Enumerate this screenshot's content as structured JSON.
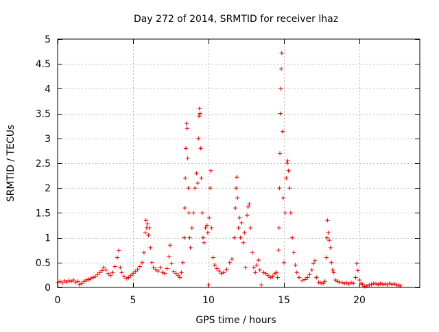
{
  "chart_data": {
    "type": "scatter",
    "title": "Day 272 of 2014, SRMTID for receiver lhaz",
    "xlabel": "GPS time / hours",
    "ylabel": "SRMTID / TECUs",
    "xlim": [
      0,
      24
    ],
    "ylim": [
      0,
      5
    ],
    "grid": true,
    "marker": "plus",
    "colors": {
      "series": "#ff0000",
      "grid": "#b7b7b7",
      "frame": "#000000"
    },
    "x_ticks": [
      {
        "value": 0,
        "label": "0"
      },
      {
        "value": 5,
        "label": "5"
      },
      {
        "value": 10,
        "label": "10"
      },
      {
        "value": 15,
        "label": "15"
      },
      {
        "value": 20,
        "label": "20"
      }
    ],
    "y_ticks": [
      {
        "value": 0,
        "label": "0"
      },
      {
        "value": 0.5,
        "label": "0.5"
      },
      {
        "value": 1,
        "label": "1"
      },
      {
        "value": 1.5,
        "label": "1.5"
      },
      {
        "value": 2,
        "label": "2"
      },
      {
        "value": 2.5,
        "label": "2.5"
      },
      {
        "value": 3,
        "label": "3"
      },
      {
        "value": 3.5,
        "label": "3.5"
      },
      {
        "value": 4,
        "label": "4"
      },
      {
        "value": 4.5,
        "label": "4.5"
      },
      {
        "value": 5,
        "label": "5"
      }
    ],
    "series": [
      {
        "name": "SRMTID",
        "points": [
          [
            0.0,
            0.1
          ],
          [
            0.15,
            0.12
          ],
          [
            0.3,
            0.09
          ],
          [
            0.45,
            0.13
          ],
          [
            0.6,
            0.11
          ],
          [
            0.75,
            0.14
          ],
          [
            0.9,
            0.12
          ],
          [
            1.05,
            0.15
          ],
          [
            1.2,
            0.1
          ],
          [
            1.35,
            0.12
          ],
          [
            1.45,
            0.06
          ],
          [
            1.6,
            0.08
          ],
          [
            1.75,
            0.12
          ],
          [
            1.9,
            0.15
          ],
          [
            2.05,
            0.16
          ],
          [
            2.2,
            0.18
          ],
          [
            2.35,
            0.2
          ],
          [
            2.5,
            0.22
          ],
          [
            2.65,
            0.26
          ],
          [
            2.8,
            0.3
          ],
          [
            2.95,
            0.34
          ],
          [
            3.05,
            0.4
          ],
          [
            3.2,
            0.35
          ],
          [
            3.35,
            0.28
          ],
          [
            3.5,
            0.24
          ],
          [
            3.65,
            0.3
          ],
          [
            3.8,
            0.42
          ],
          [
            3.95,
            0.6
          ],
          [
            4.05,
            0.74
          ],
          [
            4.15,
            0.4
          ],
          [
            4.25,
            0.3
          ],
          [
            4.4,
            0.22
          ],
          [
            4.55,
            0.18
          ],
          [
            4.7,
            0.2
          ],
          [
            4.85,
            0.24
          ],
          [
            5.0,
            0.28
          ],
          [
            5.15,
            0.32
          ],
          [
            5.3,
            0.36
          ],
          [
            5.45,
            0.42
          ],
          [
            5.6,
            0.5
          ],
          [
            5.72,
            0.7
          ],
          [
            5.8,
            1.1
          ],
          [
            5.85,
            1.35
          ],
          [
            5.9,
            1.2
          ],
          [
            5.95,
            1.28
          ],
          [
            6.02,
            1.05
          ],
          [
            6.08,
            1.2
          ],
          [
            6.15,
            0.8
          ],
          [
            6.25,
            0.5
          ],
          [
            6.35,
            0.4
          ],
          [
            6.5,
            0.36
          ],
          [
            6.65,
            0.33
          ],
          [
            6.8,
            0.4
          ],
          [
            6.95,
            0.3
          ],
          [
            7.1,
            0.28
          ],
          [
            7.25,
            0.38
          ],
          [
            7.38,
            0.62
          ],
          [
            7.45,
            0.85
          ],
          [
            7.55,
            0.48
          ],
          [
            7.7,
            0.32
          ],
          [
            7.85,
            0.28
          ],
          [
            8.0,
            0.24
          ],
          [
            8.1,
            0.2
          ],
          [
            8.2,
            0.3
          ],
          [
            8.3,
            0.5
          ],
          [
            8.38,
            1.0
          ],
          [
            8.42,
            1.6
          ],
          [
            8.46,
            2.2
          ],
          [
            8.5,
            2.8
          ],
          [
            8.54,
            3.3
          ],
          [
            8.58,
            3.2
          ],
          [
            8.62,
            2.6
          ],
          [
            8.66,
            2.0
          ],
          [
            8.7,
            1.5
          ],
          [
            8.75,
            1.0
          ],
          [
            8.8,
            0.8
          ],
          [
            8.9,
            1.2
          ],
          [
            9.0,
            1.5
          ],
          [
            9.1,
            2.0
          ],
          [
            9.2,
            2.3
          ],
          [
            9.28,
            2.1
          ],
          [
            9.33,
            3.0
          ],
          [
            9.37,
            3.45
          ],
          [
            9.4,
            3.6
          ],
          [
            9.44,
            3.5
          ],
          [
            9.48,
            2.8
          ],
          [
            9.52,
            2.2
          ],
          [
            9.58,
            1.5
          ],
          [
            9.64,
            1.0
          ],
          [
            9.7,
            0.9
          ],
          [
            9.8,
            1.2
          ],
          [
            9.9,
            1.25
          ],
          [
            9.95,
            1.1
          ],
          [
            10.0,
            0.05
          ],
          [
            10.05,
            1.4
          ],
          [
            10.1,
            2.0
          ],
          [
            10.15,
            2.35
          ],
          [
            10.2,
            1.2
          ],
          [
            10.3,
            0.6
          ],
          [
            10.4,
            0.45
          ],
          [
            10.55,
            0.38
          ],
          [
            10.7,
            0.33
          ],
          [
            10.85,
            0.28
          ],
          [
            11.0,
            0.3
          ],
          [
            11.2,
            0.36
          ],
          [
            11.4,
            0.5
          ],
          [
            11.55,
            0.57
          ],
          [
            11.7,
            1.0
          ],
          [
            11.78,
            1.6
          ],
          [
            11.83,
            2.0
          ],
          [
            11.87,
            2.22
          ],
          [
            11.92,
            1.8
          ],
          [
            11.98,
            1.2
          ],
          [
            12.05,
            1.4
          ],
          [
            12.12,
            1.0
          ],
          [
            12.2,
            1.3
          ],
          [
            12.3,
            0.9
          ],
          [
            12.38,
            1.1
          ],
          [
            12.45,
            0.4
          ],
          [
            12.55,
            1.45
          ],
          [
            12.62,
            1.62
          ],
          [
            12.7,
            1.68
          ],
          [
            12.78,
            1.2
          ],
          [
            12.9,
            0.7
          ],
          [
            13.0,
            0.4
          ],
          [
            13.1,
            0.3
          ],
          [
            13.2,
            0.45
          ],
          [
            13.3,
            0.55
          ],
          [
            13.4,
            0.35
          ],
          [
            13.5,
            0.05
          ],
          [
            13.65,
            0.3
          ],
          [
            13.8,
            0.28
          ],
          [
            13.95,
            0.24
          ],
          [
            14.1,
            0.2
          ],
          [
            14.25,
            0.22
          ],
          [
            14.4,
            0.28
          ],
          [
            14.5,
            0.3
          ],
          [
            14.58,
            0.2
          ],
          [
            14.63,
            0.75
          ],
          [
            14.67,
            1.2
          ],
          [
            14.7,
            2.0
          ],
          [
            14.73,
            2.7
          ],
          [
            14.76,
            3.5
          ],
          [
            14.79,
            4.0
          ],
          [
            14.82,
            4.4
          ],
          [
            14.85,
            4.72
          ],
          [
            14.9,
            3.14
          ],
          [
            14.95,
            1.8
          ],
          [
            15.0,
            0.5
          ],
          [
            15.08,
            1.5
          ],
          [
            15.15,
            2.2
          ],
          [
            15.2,
            2.5
          ],
          [
            15.25,
            2.55
          ],
          [
            15.3,
            2.35
          ],
          [
            15.38,
            2.0
          ],
          [
            15.45,
            1.5
          ],
          [
            15.55,
            1.0
          ],
          [
            15.65,
            0.7
          ],
          [
            15.75,
            0.45
          ],
          [
            15.85,
            0.3
          ],
          [
            16.0,
            0.2
          ],
          [
            16.2,
            0.14
          ],
          [
            16.4,
            0.16
          ],
          [
            16.55,
            0.2
          ],
          [
            16.7,
            0.26
          ],
          [
            16.85,
            0.35
          ],
          [
            16.95,
            0.48
          ],
          [
            17.05,
            0.54
          ],
          [
            17.15,
            0.2
          ],
          [
            17.3,
            0.1
          ],
          [
            17.45,
            0.09
          ],
          [
            17.6,
            0.08
          ],
          [
            17.7,
            0.12
          ],
          [
            17.8,
            0.6
          ],
          [
            17.85,
            1.0
          ],
          [
            17.88,
            1.35
          ],
          [
            17.93,
            1.1
          ],
          [
            18.0,
            0.95
          ],
          [
            18.08,
            0.8
          ],
          [
            18.15,
            0.5
          ],
          [
            18.22,
            0.35
          ],
          [
            18.3,
            0.3
          ],
          [
            18.4,
            0.15
          ],
          [
            18.55,
            0.12
          ],
          [
            18.7,
            0.1
          ],
          [
            18.85,
            0.1
          ],
          [
            19.0,
            0.08
          ],
          [
            19.15,
            0.09
          ],
          [
            19.3,
            0.07
          ],
          [
            19.45,
            0.1
          ],
          [
            19.6,
            0.08
          ],
          [
            19.75,
            0.2
          ],
          [
            19.82,
            0.48
          ],
          [
            19.9,
            0.34
          ],
          [
            20.0,
            0.15
          ],
          [
            20.1,
            0.08
          ],
          [
            20.2,
            0.06
          ],
          [
            20.35,
            0.02
          ],
          [
            20.5,
            0.03
          ],
          [
            20.65,
            0.05
          ],
          [
            20.8,
            0.06
          ],
          [
            20.95,
            0.08
          ],
          [
            21.1,
            0.07
          ],
          [
            21.25,
            0.06
          ],
          [
            21.4,
            0.08
          ],
          [
            21.55,
            0.06
          ],
          [
            21.7,
            0.07
          ],
          [
            21.85,
            0.05
          ],
          [
            22.0,
            0.08
          ],
          [
            22.15,
            0.06
          ],
          [
            22.3,
            0.07
          ],
          [
            22.45,
            0.05
          ],
          [
            22.6,
            0.04
          ],
          [
            22.7,
            0.03
          ]
        ]
      }
    ]
  }
}
